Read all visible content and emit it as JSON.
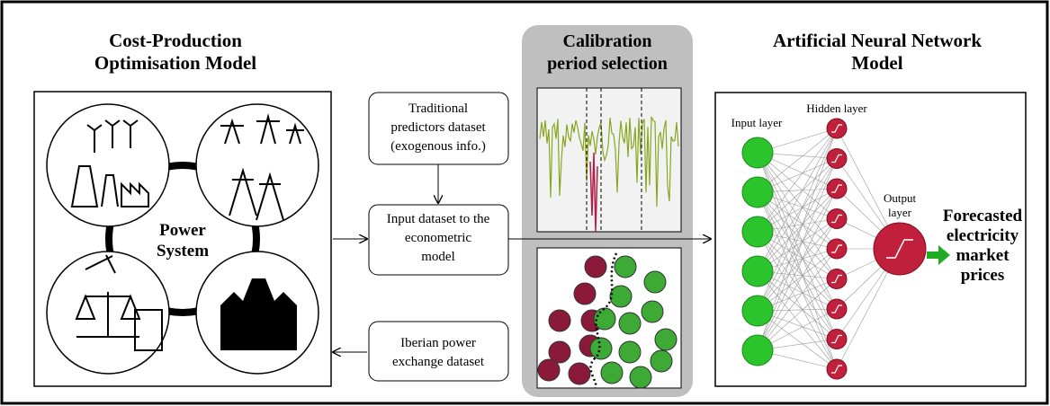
{
  "left_title": [
    "Cost-Production",
    "Optimisation Model"
  ],
  "power_system": [
    "Power",
    "System"
  ],
  "traditional_box": [
    "Traditional",
    "predictors dataset",
    "(exogenous info.)"
  ],
  "input_box": [
    "Input dataset to the",
    "econometric",
    "model"
  ],
  "iberian_box": [
    "Iberian power",
    "exchange dataset"
  ],
  "calibration_title": [
    "Calibration",
    "period selection"
  ],
  "right_title": [
    "Artificial Neural Network",
    "Model"
  ],
  "input_layer": "Input layer",
  "hidden_layer": "Hidden layer",
  "output_layer": [
    "Output",
    "layer"
  ],
  "forecast": [
    "Forecasted",
    "electricity",
    "market",
    "prices"
  ]
}
